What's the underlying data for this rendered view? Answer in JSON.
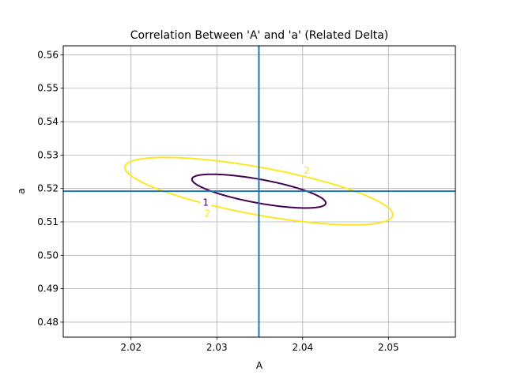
{
  "chart_data": {
    "type": "contour",
    "title": "Correlation Between 'A' and 'a' (Related Delta)",
    "xlabel": "A",
    "ylabel": "a",
    "xlim": [
      2.0121,
      2.0578
    ],
    "ylim": [
      0.4755,
      0.5627
    ],
    "xticks": [
      {
        "value": 2.02,
        "label": "2.02"
      },
      {
        "value": 2.03,
        "label": "2.03"
      },
      {
        "value": 2.04,
        "label": "2.04"
      },
      {
        "value": 2.05,
        "label": "2.05"
      }
    ],
    "yticks": [
      {
        "value": 0.48,
        "label": "0.48"
      },
      {
        "value": 0.49,
        "label": "0.49"
      },
      {
        "value": 0.5,
        "label": "0.50"
      },
      {
        "value": 0.51,
        "label": "0.51"
      },
      {
        "value": 0.52,
        "label": "0.52"
      },
      {
        "value": 0.53,
        "label": "0.53"
      },
      {
        "value": 0.54,
        "label": "0.54"
      },
      {
        "value": 0.55,
        "label": "0.55"
      },
      {
        "value": 0.56,
        "label": "0.56"
      }
    ],
    "grid": true,
    "best_fit": {
      "A": 2.0349,
      "a": 0.5192
    },
    "reference_line_color": "#1f77b4",
    "ellipse": {
      "correlation": -0.7,
      "sigma_A": 0.0078,
      "sigma_a": 0.00505
    },
    "contours": [
      {
        "level": 1,
        "label": "1",
        "color": "#440154",
        "label_at": {
          "A": 2.0287,
          "a": 0.5158
        }
      },
      {
        "level": 2,
        "label": "2",
        "color": "#fde725",
        "label_at": [
          {
            "A": 2.0405,
            "a": 0.5254
          },
          {
            "A": 2.0289,
            "a": 0.5125
          }
        ]
      }
    ]
  }
}
